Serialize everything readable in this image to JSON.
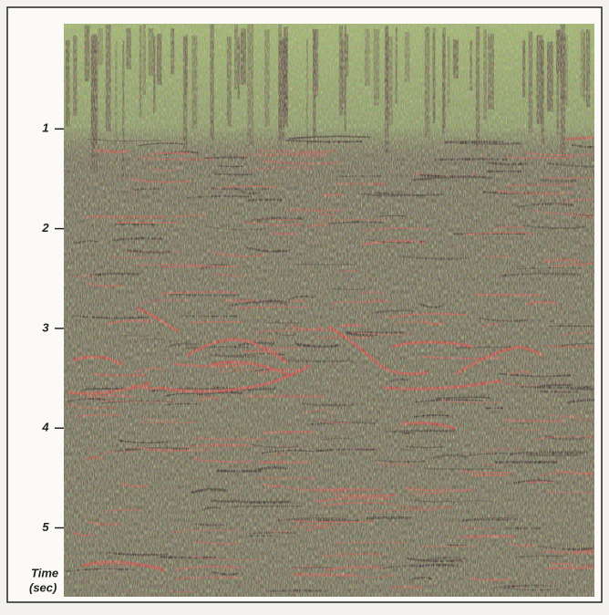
{
  "axis": {
    "label": [
      "Time",
      "(sec)"
    ],
    "ticks": [
      1,
      2,
      3,
      4,
      5
    ]
  }
}
